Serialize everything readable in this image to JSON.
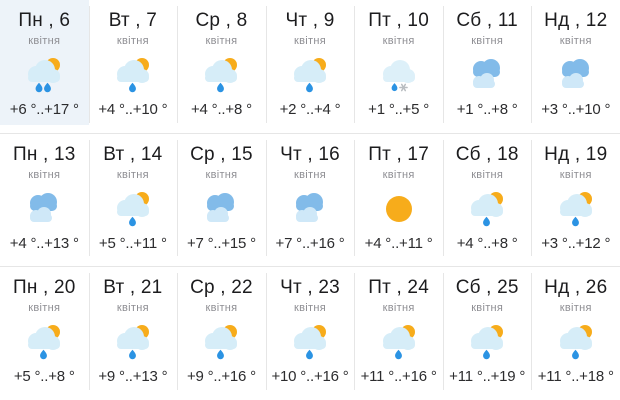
{
  "colors": {
    "sun": "#F7AC1B",
    "cloud_light": "#D6EDF8",
    "cloud_sleet": "#DDF0F9",
    "cloud_dark": "#82BBE9",
    "cloud_front": "#CFE8F8",
    "drop": "#2B93E3",
    "snowflake": "#B9BDC1",
    "divider": "#E6E6E6",
    "today_bg": "#EDF3F9",
    "title_text": "#1C1C1E",
    "month_text": "#8E8E93",
    "temp_text": "#2C2C2E"
  },
  "grid": {
    "weeks": [
      [
        {
          "label": "Пн , 6",
          "month": "квітня",
          "icon": "rain-sun-two-drops",
          "temp": "+6 °..+17 °",
          "today": true
        },
        {
          "label": "Вт , 7",
          "month": "квітня",
          "icon": "rain-sun",
          "temp": "+4 °..+10 °",
          "today": false
        },
        {
          "label": "Ср , 8",
          "month": "квітня",
          "icon": "rain-sun",
          "temp": "+4 °..+8 °",
          "today": false
        },
        {
          "label": "Чт , 9",
          "month": "квітня",
          "icon": "rain-sun",
          "temp": "+2 °..+4 °",
          "today": false
        },
        {
          "label": "Пт , 10",
          "month": "квітня",
          "icon": "sleet",
          "temp": "+1 °..+5 °",
          "today": false
        },
        {
          "label": "Сб , 11",
          "month": "квітня",
          "icon": "cloudy",
          "temp": "+1 °..+8 °",
          "today": false
        },
        {
          "label": "Нд , 12",
          "month": "квітня",
          "icon": "cloudy",
          "temp": "+3 °..+10 °",
          "today": false
        }
      ],
      [
        {
          "label": "Пн , 13",
          "month": "квітня",
          "icon": "cloudy",
          "temp": "+4 °..+13 °",
          "today": false
        },
        {
          "label": "Вт , 14",
          "month": "квітня",
          "icon": "rain-sun",
          "temp": "+5 °..+11 °",
          "today": false
        },
        {
          "label": "Ср , 15",
          "month": "квітня",
          "icon": "cloudy",
          "temp": "+7 °..+15 °",
          "today": false
        },
        {
          "label": "Чт , 16",
          "month": "квітня",
          "icon": "cloudy",
          "temp": "+7 °..+16 °",
          "today": false
        },
        {
          "label": "Пт , 17",
          "month": "квітня",
          "icon": "sunny",
          "temp": "+4 °..+11 °",
          "today": false
        },
        {
          "label": "Сб , 18",
          "month": "квітня",
          "icon": "rain-sun",
          "temp": "+4 °..+8 °",
          "today": false
        },
        {
          "label": "Нд , 19",
          "month": "квітня",
          "icon": "rain-sun",
          "temp": "+3 °..+12 °",
          "today": false
        }
      ],
      [
        {
          "label": "Пн , 20",
          "month": "квітня",
          "icon": "rain-sun",
          "temp": "+5 °..+8 °",
          "today": false
        },
        {
          "label": "Вт , 21",
          "month": "квітня",
          "icon": "rain-sun",
          "temp": "+9 °..+13 °",
          "today": false
        },
        {
          "label": "Ср , 22",
          "month": "квітня",
          "icon": "rain-sun",
          "temp": "+9 °..+16 °",
          "today": false
        },
        {
          "label": "Чт , 23",
          "month": "квітня",
          "icon": "rain-sun",
          "temp": "+10 °..+16 °",
          "today": false
        },
        {
          "label": "Пт , 24",
          "month": "квітня",
          "icon": "rain-sun",
          "temp": "+11 °..+16 °",
          "today": false
        },
        {
          "label": "Сб , 25",
          "month": "квітня",
          "icon": "rain-sun",
          "temp": "+11 °..+19 °",
          "today": false
        },
        {
          "label": "Нд , 26",
          "month": "квітня",
          "icon": "rain-sun",
          "temp": "+11 °..+18 °",
          "today": false
        }
      ]
    ]
  }
}
